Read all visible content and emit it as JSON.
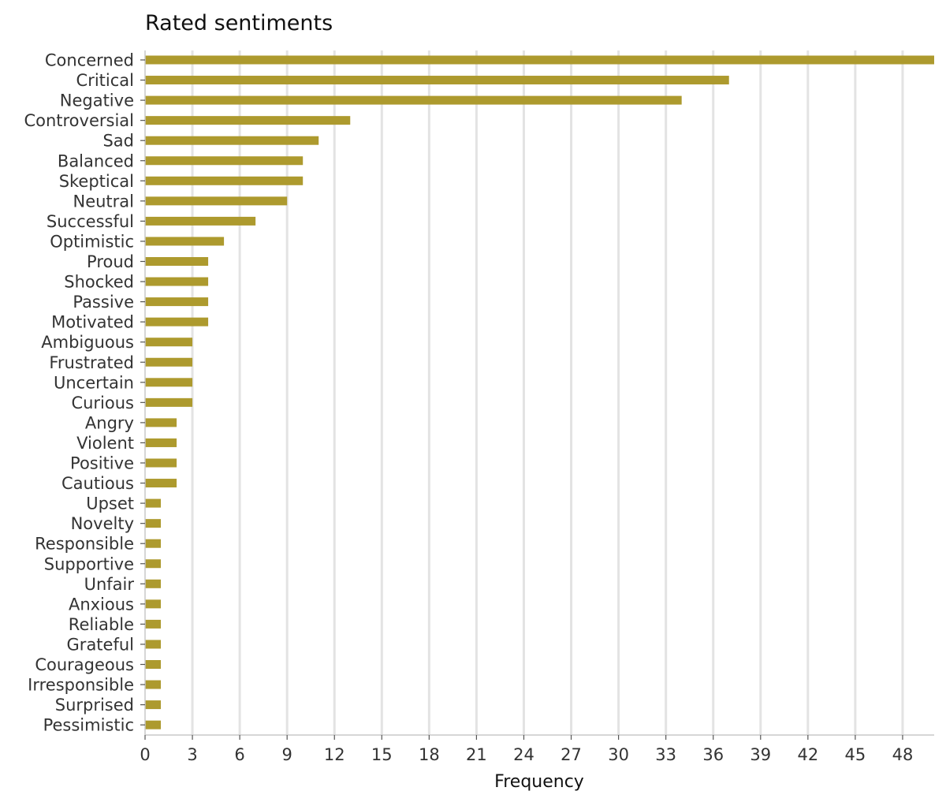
{
  "chart_data": {
    "type": "bar",
    "orientation": "horizontal",
    "title": "Rated sentiments",
    "xlabel": "Frequency",
    "ylabel": "",
    "categories": [
      "Concerned",
      "Critical",
      "Negative",
      "Controversial",
      "Sad",
      "Balanced",
      "Skeptical",
      "Neutral",
      "Successful",
      "Optimistic",
      "Proud",
      "Shocked",
      "Passive",
      "Motivated",
      "Ambiguous",
      "Frustrated",
      "Uncertain",
      "Curious",
      "Angry",
      "Violent",
      "Positive",
      "Cautious",
      "Upset",
      "Novelty",
      "Responsible",
      "Supportive",
      "Unfair",
      "Anxious",
      "Reliable",
      "Grateful",
      "Courageous",
      "Irresponsible",
      "Surprised",
      "Pessimistic"
    ],
    "values": [
      50,
      37,
      34,
      13,
      11,
      10,
      10,
      9,
      7,
      5,
      4,
      4,
      4,
      4,
      3,
      3,
      3,
      3,
      2,
      2,
      2,
      2,
      1,
      1,
      1,
      1,
      1,
      1,
      1,
      1,
      1,
      1,
      1,
      1
    ],
    "xlim": [
      0,
      50
    ],
    "xticks": [
      0,
      3,
      6,
      9,
      12,
      15,
      18,
      21,
      24,
      27,
      30,
      33,
      36,
      39,
      42,
      45,
      48
    ],
    "grid": "vertical",
    "legend": "none",
    "colors": {
      "bar": "#ad9a2e",
      "grid": "#e3e3e3",
      "axis": "#c8c8c8"
    }
  }
}
